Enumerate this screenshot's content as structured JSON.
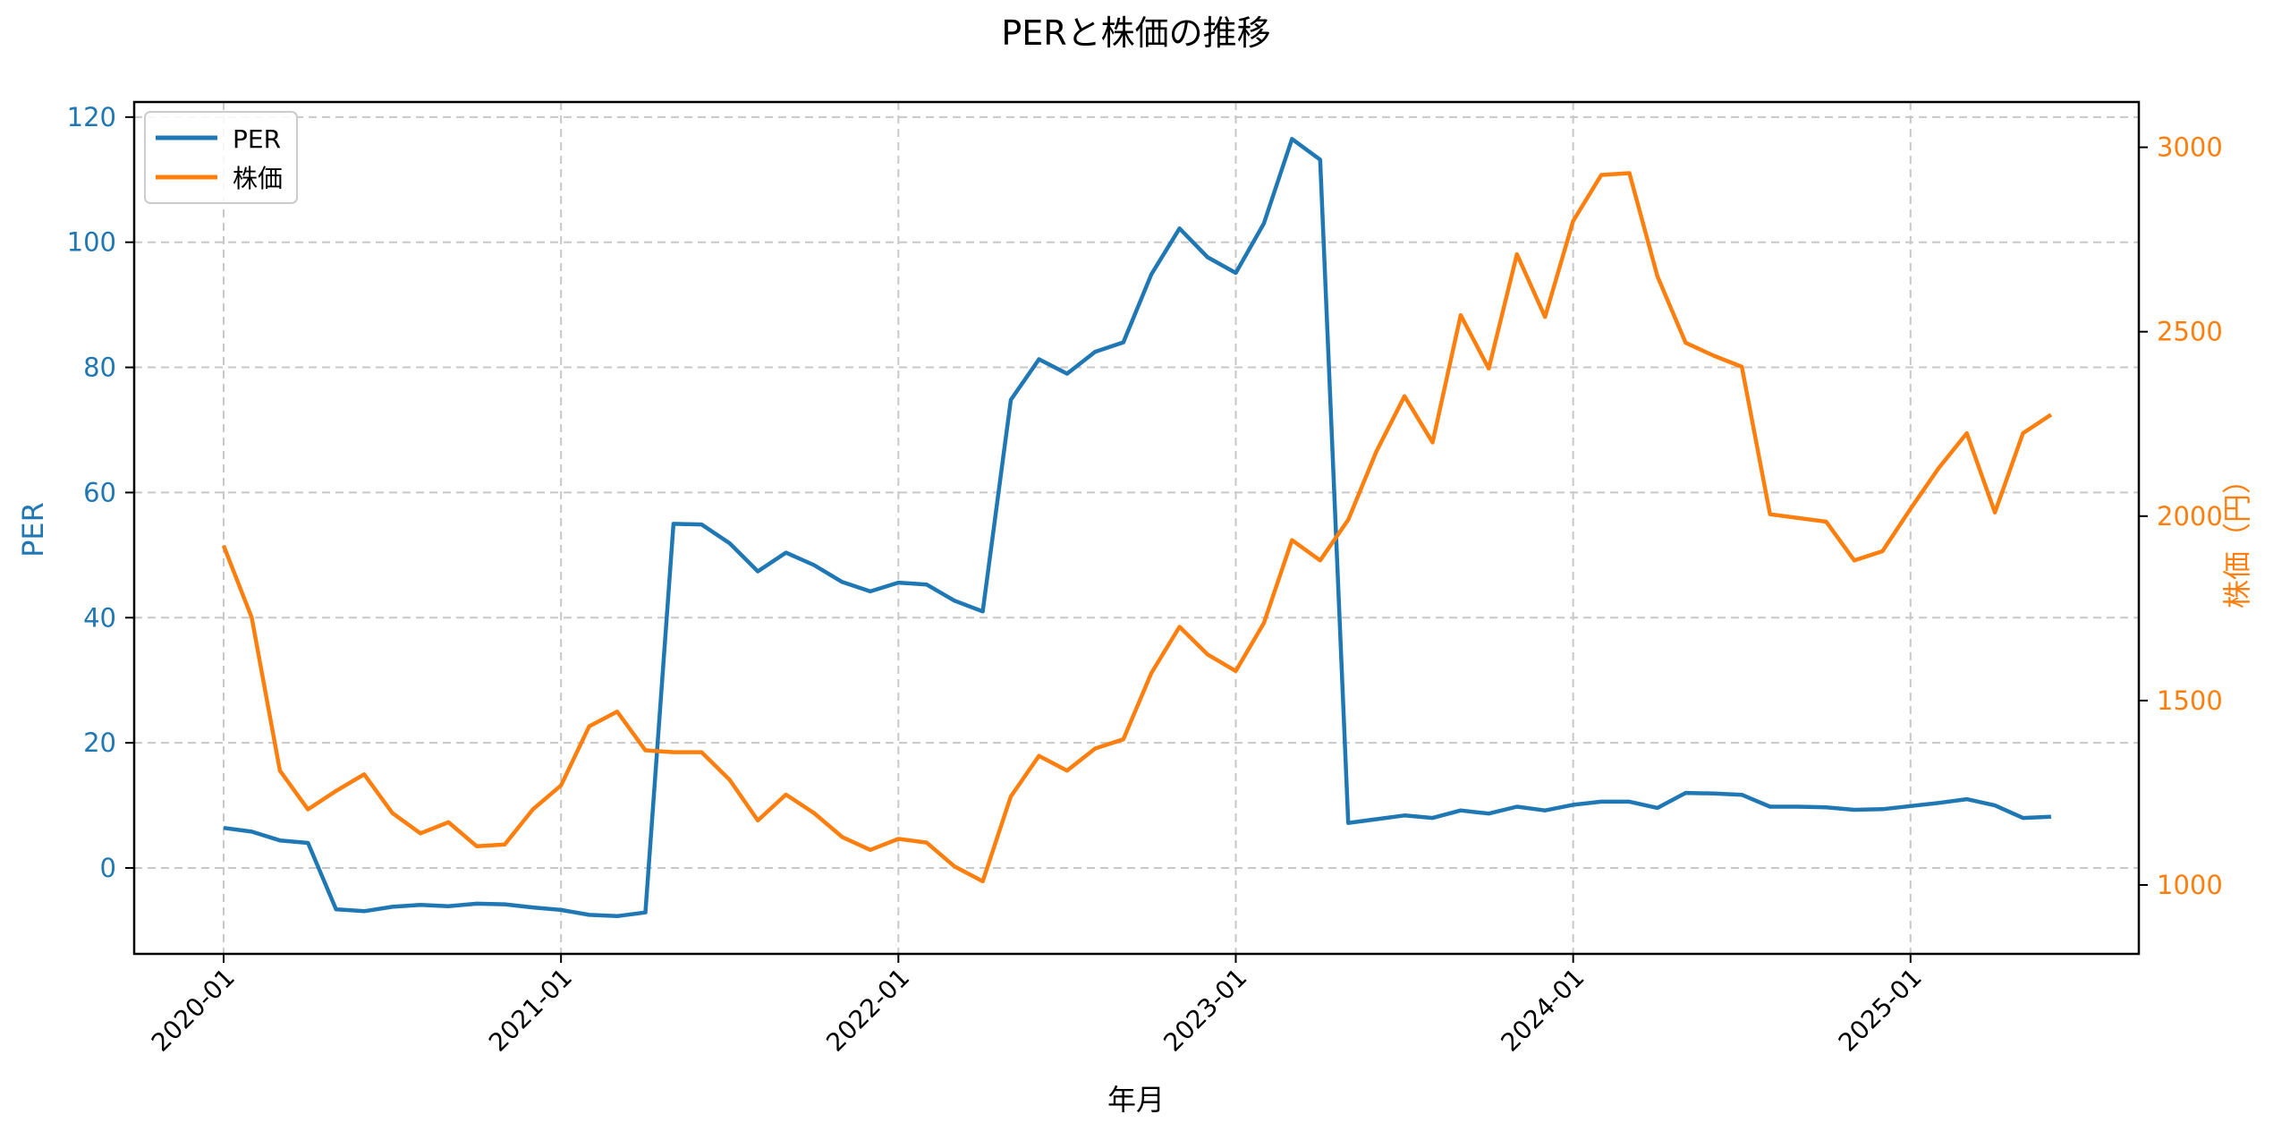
{
  "chart_data": {
    "type": "line",
    "title": "PERと株価の推移",
    "xlabel": "年月",
    "ylabel": "PER",
    "ylabel_right": "株価（円）",
    "x_ticks": [
      "2020-01",
      "2021-01",
      "2022-01",
      "2023-01",
      "2024-01",
      "2025-01"
    ],
    "y_ticks_left": [
      0,
      20,
      40,
      60,
      80,
      100,
      120
    ],
    "y_ticks_right": [
      1000,
      1500,
      2000,
      2500,
      3000
    ],
    "ylim_left": [
      -14,
      122
    ],
    "ylim_right": [
      820,
      3125
    ],
    "grid": true,
    "legend_position": "upper left",
    "x_start": "2020-01",
    "x_end": "2025-06",
    "series": [
      {
        "name": "PER",
        "axis": "left",
        "color": "#1f77b4",
        "values": [
          6.4,
          5.8,
          4.4,
          4.0,
          -6.6,
          -6.9,
          -6.2,
          -5.9,
          -6.1,
          -5.7,
          -5.8,
          -6.3,
          -6.7,
          -7.5,
          -7.7,
          -7.1,
          55.0,
          54.9,
          51.9,
          47.4,
          50.4,
          48.4,
          45.7,
          44.2,
          45.6,
          45.3,
          42.7,
          41.0,
          74.8,
          81.3,
          79.0,
          82.5,
          84.0,
          94.9,
          102.2,
          97.6,
          95.1,
          103.0,
          116.5,
          113.2,
          7.2,
          7.8,
          8.4,
          8.0,
          9.2,
          8.7,
          9.8,
          9.2,
          10.1,
          10.6,
          10.6,
          9.6,
          12.0,
          11.9,
          11.7,
          9.8,
          9.8,
          9.7,
          9.3,
          9.4,
          9.9,
          10.4,
          11.0,
          10.0,
          8.0,
          8.2
        ]
      },
      {
        "name": "株価",
        "axis": "right",
        "color": "#ff7f0e",
        "values": [
          1920,
          1725,
          1310,
          1205,
          1255,
          1300,
          1195,
          1140,
          1170,
          1105,
          1110,
          1205,
          1270,
          1430,
          1470,
          1365,
          1360,
          1360,
          1285,
          1175,
          1245,
          1195,
          1130,
          1095,
          1125,
          1115,
          1050,
          1010,
          1240,
          1350,
          1310,
          1370,
          1395,
          1575,
          1700,
          1625,
          1580,
          1710,
          1935,
          1880,
          1990,
          2175,
          2325,
          2200,
          2545,
          2400,
          2710,
          2540,
          2800,
          2925,
          2930,
          2650,
          2470,
          2435,
          2405,
          2005,
          1995,
          1985,
          1880,
          1905,
          2020,
          2130,
          2225,
          2010,
          2225,
          2275
        ]
      }
    ]
  }
}
